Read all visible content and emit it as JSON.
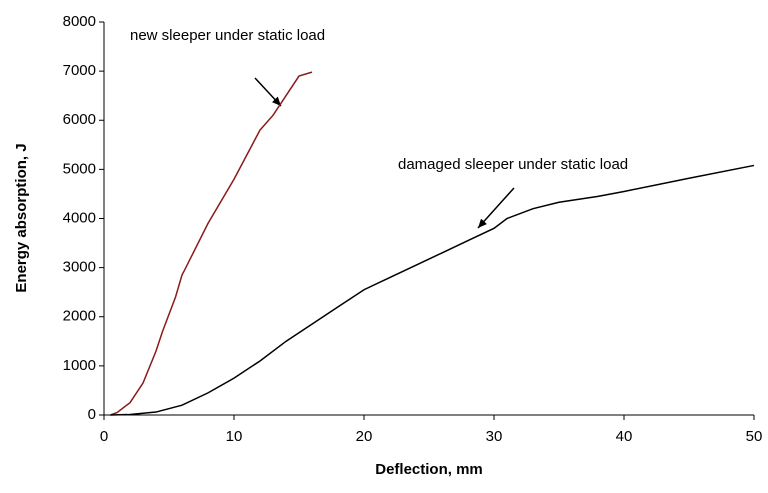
{
  "chart_data": {
    "type": "line",
    "x_label": "Deflection, mm",
    "y_label": "Energy absorption, J",
    "annotations": [
      "new sleeper under static load",
      "damaged sleeper under static load"
    ],
    "xlim": [
      0,
      50
    ],
    "xticks": [
      0,
      10,
      20,
      30,
      40,
      50
    ],
    "ylim": [
      0,
      8000
    ],
    "yticks": [
      0,
      1000,
      2000,
      3000,
      4000,
      5000,
      6000,
      7000,
      8000
    ],
    "series": [
      {
        "color": "#8b1a1a",
        "x": [
          0.5,
          1,
          2,
          3,
          4,
          4.5,
          5.5,
          6,
          6.2,
          8,
          10,
          12,
          13,
          14,
          15,
          16
        ],
        "values": [
          0,
          50,
          250,
          650,
          1300,
          1700,
          2400,
          2850,
          2950,
          3900,
          4800,
          5800,
          6100,
          6500,
          6900,
          6980
        ]
      },
      {
        "color": "#000000",
        "x": [
          0.5,
          2,
          4,
          6,
          8,
          10,
          12,
          14,
          16,
          18,
          20,
          22,
          24,
          26,
          28,
          30,
          31,
          33,
          35,
          38,
          40,
          45,
          50
        ],
        "values": [
          0,
          10,
          60,
          200,
          450,
          750,
          1100,
          1500,
          1850,
          2200,
          2550,
          2800,
          3050,
          3300,
          3550,
          3800,
          4000,
          4200,
          4330,
          4450,
          4550,
          4820,
          5080
        ]
      }
    ]
  }
}
